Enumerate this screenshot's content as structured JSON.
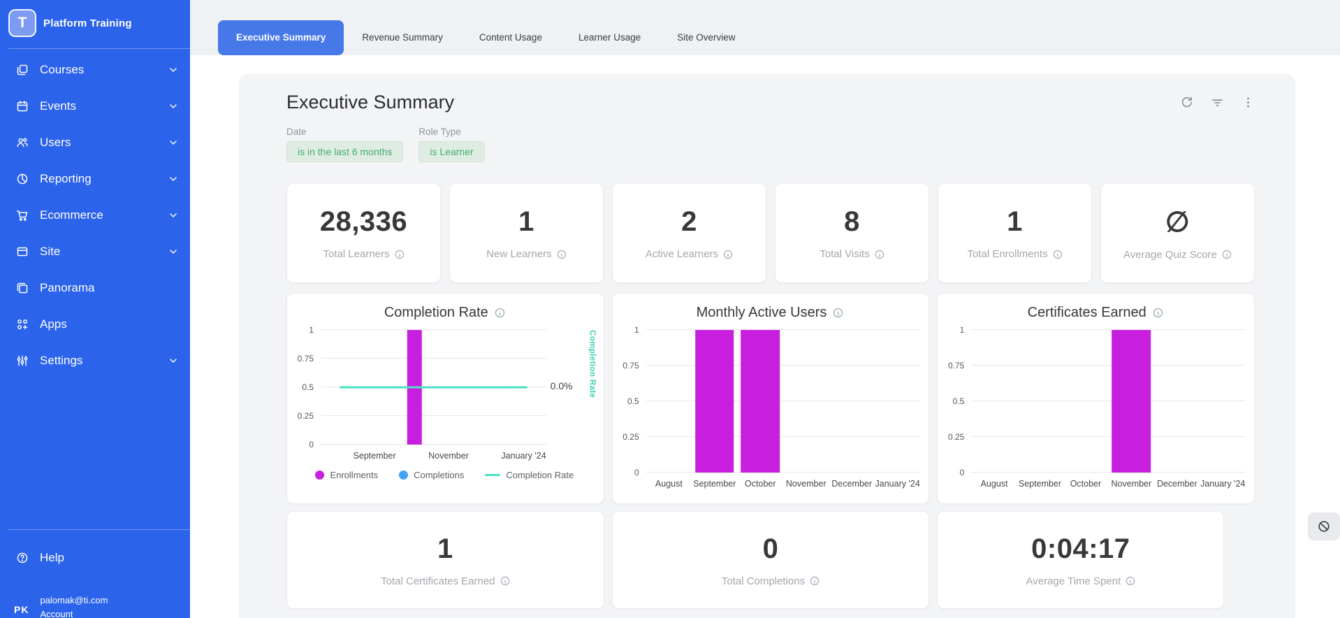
{
  "sidebar": {
    "brand": {
      "name": "Platform Training",
      "logo_letter": "T"
    },
    "items": [
      {
        "label": "Courses",
        "icon": "courses-icon",
        "expandable": true
      },
      {
        "label": "Events",
        "icon": "events-icon",
        "expandable": true
      },
      {
        "label": "Users",
        "icon": "users-icon",
        "expandable": true
      },
      {
        "label": "Reporting",
        "icon": "reporting-icon",
        "expandable": true
      },
      {
        "label": "Ecommerce",
        "icon": "ecommerce-icon",
        "expandable": true
      },
      {
        "label": "Site",
        "icon": "site-icon",
        "expandable": true
      },
      {
        "label": "Panorama",
        "icon": "panorama-icon",
        "expandable": false
      },
      {
        "label": "Apps",
        "icon": "apps-icon",
        "expandable": false
      },
      {
        "label": "Settings",
        "icon": "settings-icon",
        "expandable": true
      }
    ],
    "help_label": "Help",
    "user": {
      "initials": "PK",
      "email": "palomak@ti.com",
      "account_label": "Account"
    }
  },
  "tabs": [
    {
      "label": "Executive Summary",
      "active": true
    },
    {
      "label": "Revenue Summary",
      "active": false
    },
    {
      "label": "Content Usage",
      "active": false
    },
    {
      "label": "Learner Usage",
      "active": false
    },
    {
      "label": "Site Overview",
      "active": false
    }
  ],
  "page": {
    "title": "Executive Summary",
    "filters": [
      {
        "label": "Date",
        "value": "is in the last 6 months"
      },
      {
        "label": "Role Type",
        "value": "is Learner"
      }
    ]
  },
  "kpis": [
    {
      "value": "28,336",
      "label": "Total Learners"
    },
    {
      "value": "1",
      "label": "New Learners"
    },
    {
      "value": "2",
      "label": "Active Learners"
    },
    {
      "value": "8",
      "label": "Total Visits"
    },
    {
      "value": "1",
      "label": "Total Enrollments"
    },
    {
      "value": "∅",
      "label": "Average Quiz Score"
    }
  ],
  "bottom_kpis": [
    {
      "value": "1",
      "label": "Total Certificates Earned"
    },
    {
      "value": "0",
      "label": "Total Completions"
    },
    {
      "value": "0:04:17",
      "label": "Average Time Spent"
    }
  ],
  "chart_data": [
    {
      "type": "bar+line",
      "title": "Completion Rate",
      "categories": [
        "August",
        "September",
        "October",
        "November",
        "December",
        "January '24"
      ],
      "x_tick_labels": [
        "",
        "September",
        "",
        "November",
        "",
        "January '24"
      ],
      "y_ticks": [
        1,
        0.75,
        0.5,
        0.25,
        0
      ],
      "y_max": 1,
      "bar_frac": 0.38,
      "series": [
        {
          "name": "Enrollments",
          "type": "bar",
          "color": "#c81ede",
          "values": [
            0,
            0,
            1,
            0,
            0,
            0
          ]
        },
        {
          "name": "Completions",
          "type": "bar",
          "color": "#42a4f5",
          "values": [
            0,
            0,
            0,
            0,
            0,
            0
          ]
        },
        {
          "name": "Completion Rate",
          "type": "line",
          "color": "#4be0c4",
          "values": [
            0,
            0,
            0,
            0,
            0,
            0
          ]
        }
      ],
      "line": {
        "y_frac": 0.5,
        "color": "#4be0c4"
      },
      "right_axis": {
        "value": "0.0%",
        "label": "Completion Rate",
        "color": "#3ed2b5"
      },
      "legend": [
        {
          "label": "Enrollments",
          "color": "#c81ede",
          "type": "dot"
        },
        {
          "label": "Completions",
          "color": "#42a4f5",
          "type": "dot"
        },
        {
          "label": "Completion Rate",
          "color": "#4be0c4",
          "type": "line"
        }
      ]
    },
    {
      "type": "bar",
      "title": "Monthly Active Users",
      "categories": [
        "August",
        "September",
        "October",
        "November",
        "December",
        "January '24"
      ],
      "x_tick_labels": [
        "August",
        "September",
        "October",
        "November",
        "December",
        "January '24"
      ],
      "y_ticks": [
        1,
        0.75,
        0.5,
        0.25,
        0
      ],
      "y_max": 1,
      "bar_frac": 0.85,
      "series": [
        {
          "name": "Monthly Active Users",
          "type": "bar",
          "color": "#c81ede",
          "values": [
            0,
            1,
            1,
            0,
            0,
            0
          ]
        }
      ]
    },
    {
      "type": "bar",
      "title": "Certificates Earned",
      "categories": [
        "August",
        "September",
        "October",
        "November",
        "December",
        "January '24"
      ],
      "x_tick_labels": [
        "August",
        "September",
        "October",
        "November",
        "December",
        "January '24"
      ],
      "y_ticks": [
        1,
        0.75,
        0.5,
        0.25,
        0
      ],
      "y_max": 1,
      "bar_frac": 0.85,
      "series": [
        {
          "name": "Certificates Earned",
          "type": "bar",
          "color": "#c81ede",
          "values": [
            0,
            0,
            0,
            1,
            0,
            0
          ]
        }
      ]
    }
  ],
  "theme": {
    "sidebar_bg": "#2b63ea",
    "active_tab_bg": "#4678e8",
    "bar_color": "#c81ede",
    "line_color": "#4be0c4",
    "completions_color": "#42a4f5",
    "filter_chip_bg": "#dfece3",
    "filter_chip_text": "#43b06c"
  }
}
